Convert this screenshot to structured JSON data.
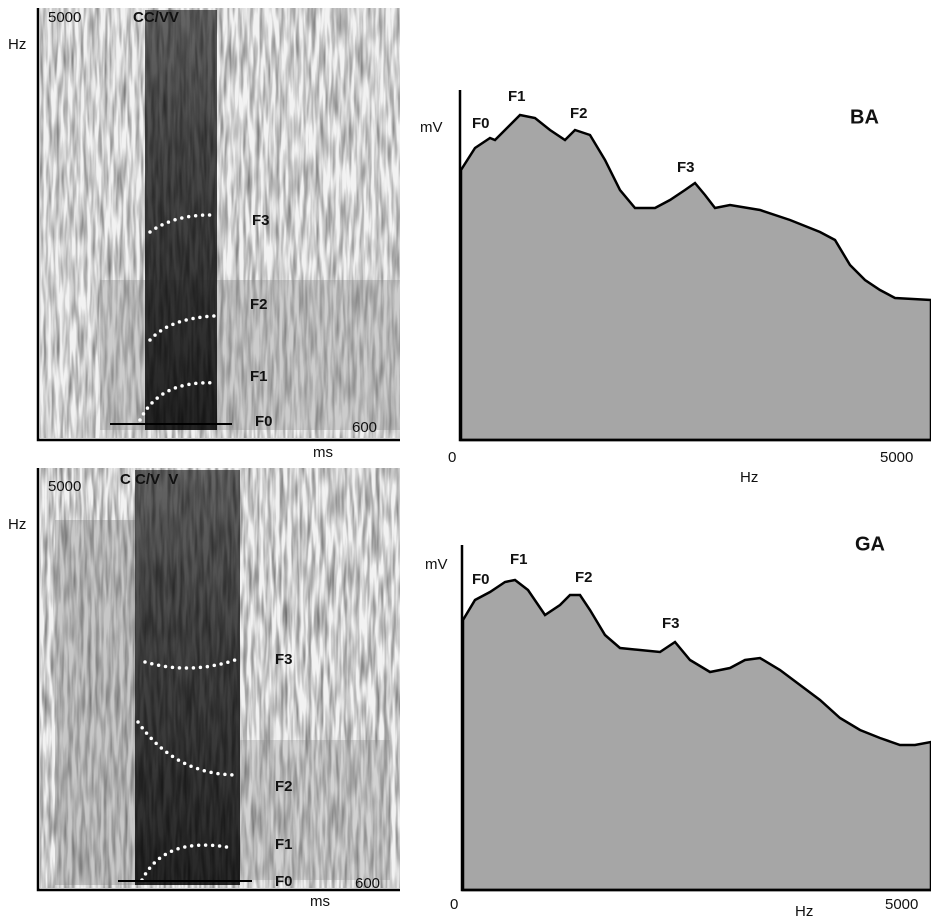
{
  "panels": [
    {
      "spectrogram": {
        "y_max": "5000",
        "y_unit": "Hz",
        "segment": "CC/VV",
        "formants": [
          "F3",
          "F2",
          "F1",
          "F0"
        ],
        "x_max": "600",
        "x_unit": "ms"
      },
      "spectrum": {
        "label": "BA",
        "y_unit": "mV",
        "formants": [
          "F0",
          "F1",
          "F2",
          "F3"
        ],
        "x_min": "0",
        "x_max": "5000",
        "x_unit": "Hz"
      }
    },
    {
      "spectrogram": {
        "y_max": "5000",
        "y_unit": "Hz",
        "segment": "C C/V  V",
        "formants": [
          "F3",
          "F2",
          "F1",
          "F0"
        ],
        "x_max": "600",
        "x_unit": "ms"
      },
      "spectrum": {
        "label": "GA",
        "y_unit": "mV",
        "formants": [
          "F0",
          "F1",
          "F2",
          "F3"
        ],
        "x_min": "0",
        "x_max": "5000",
        "x_unit": "Hz"
      }
    }
  ]
}
